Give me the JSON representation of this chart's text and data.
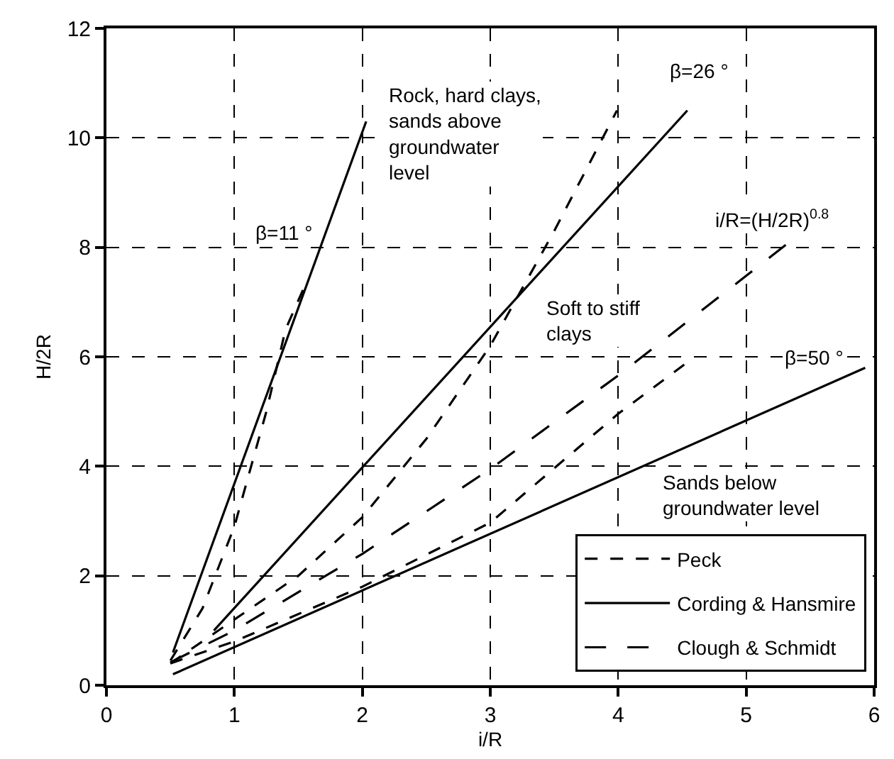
{
  "chart_data": {
    "type": "line",
    "xlabel": "i/R",
    "ylabel": "H/2R",
    "xlim": [
      0,
      6
    ],
    "ylim": [
      0,
      12
    ],
    "xticks": [
      0,
      1,
      2,
      3,
      4,
      5,
      6
    ],
    "yticks": [
      0,
      2,
      4,
      6,
      8,
      10,
      12
    ],
    "grid": true,
    "legend": "bottom right",
    "marker": "none",
    "series": [
      {
        "name": "Peck",
        "color": "#000000",
        "line_style": "dashed",
        "x": [
          0.5,
          0.75,
          1,
          1.25,
          1.4,
          1.57
        ],
        "values": [
          0.45,
          1.4,
          2.9,
          5.0,
          6.5,
          7.4
        ]
      },
      {
        "color": "#000000",
        "line_style": "dashed",
        "x": [
          0.5,
          1,
          1.5,
          2,
          2.5,
          3,
          3.5,
          3.99
        ],
        "values": [
          0.4,
          1.2,
          2.0,
          3.07,
          4.5,
          6.2,
          8.3,
          10.5
        ]
      },
      {
        "color": "#000000",
        "line_style": "dashed",
        "x": [
          0.5,
          1,
          2,
          3,
          4,
          4.54
        ],
        "values": [
          0.4,
          0.8,
          1.8,
          2.97,
          4.96,
          5.9
        ]
      },
      {
        "name": "Cording & Hansmire",
        "color": "#000000",
        "line_style": "solid",
        "x": [
          0.52,
          2.03
        ],
        "values": [
          0.6,
          10.3
        ]
      },
      {
        "color": "#000000",
        "line_style": "solid",
        "x": [
          0.84,
          4.54
        ],
        "values": [
          1.0,
          10.5
        ]
      },
      {
        "color": "#000000",
        "line_style": "solid",
        "x": [
          0.52,
          5.93
        ],
        "values": [
          0.2,
          5.8
        ]
      },
      {
        "name": "Clough & Schmidt",
        "color": "#000000",
        "line_style": "dashed",
        "x": [
          0.5,
          1,
          2,
          3,
          4,
          5,
          5.34
        ],
        "values": [
          0.42,
          1.0,
          2.4,
          3.95,
          5.66,
          7.48,
          8.1
        ]
      }
    ],
    "annotations": [
      "β=11 °",
      "β=26 °",
      "β=50 °",
      "Rock, hard clays,\nsands above\ngroundwater\nlevel",
      "Soft to stiff\nclays",
      "i/R=(H/2R)$^{0.8}$",
      "Sands below\ngroundwater level"
    ]
  }
}
